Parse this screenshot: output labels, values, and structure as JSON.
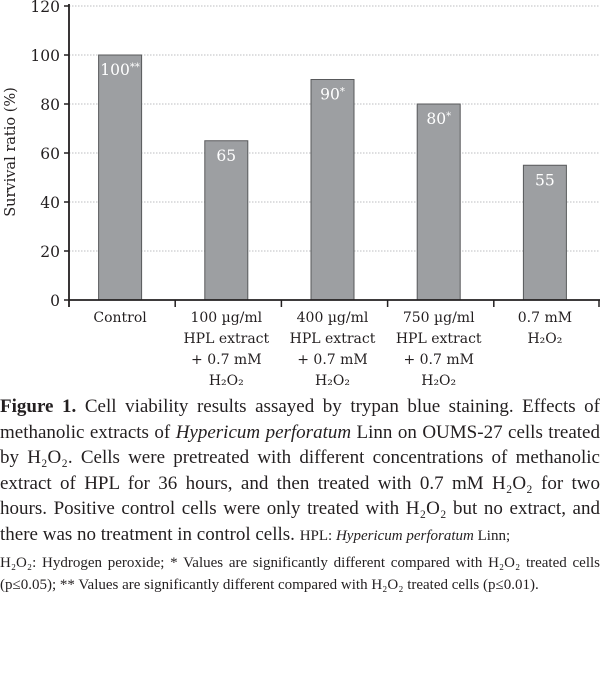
{
  "chart_data": {
    "type": "bar",
    "title": "",
    "xlabel": "",
    "ylabel": "Survival ratio (%)",
    "ylim": [
      0,
      120
    ],
    "yticks": [
      0,
      20,
      40,
      60,
      80,
      100,
      120
    ],
    "grid": true,
    "categories": [
      [
        "Control"
      ],
      [
        "100 µg/ml",
        "HPL extract",
        "+ 0.7 mM",
        "H₂O₂"
      ],
      [
        "400 µg/ml",
        "HPL extract",
        "+ 0.7 mM",
        "H₂O₂"
      ],
      [
        "750 µg/ml",
        "HPL extract",
        "+ 0.7 mM",
        "H₂O₂"
      ],
      [
        "0.7 mM",
        "H₂O₂"
      ]
    ],
    "values": [
      100,
      65,
      90,
      80,
      55
    ],
    "data_labels": [
      "100",
      "65",
      "90",
      "80",
      "55"
    ],
    "significance": [
      "**",
      "",
      "*",
      "*",
      ""
    ],
    "bar_color": "#9d9fa2",
    "bar_edge_color": "#58595b"
  },
  "caption": [
    {
      "t": "Figure 1.",
      "s": "b"
    },
    {
      "t": " Cell viability results assayed by trypan blue staining. Effects of methanolic extracts of ",
      "s": ""
    },
    {
      "t": "Hypericum perforatum",
      "s": "i"
    },
    {
      "t": " Linn on OUMS-27 cells treated by H₂O₂. Cells were pretreated with different concentrations of methanolic extract of HPL for 36 hours, and then treated with 0.7 mM H₂O₂ for two hours. Positive control cells were only treated with H₂O₂ but no extract, and there was no treatment in control cells. ",
      "s": ""
    },
    {
      "t": "HPL: ",
      "s": "small"
    },
    {
      "t": "Hypericum perforatum",
      "s": "small-i"
    },
    {
      "t": " Linn;",
      "s": "small"
    }
  ],
  "notes": [
    {
      "t": "H₂O₂: Hydrogen peroxide; * Values are significantly different compared with H₂O₂ treated cells (p≤0.05); ** Values are significantly different compared with H₂O₂ treated cells (p≤0.01).",
      "s": ""
    }
  ]
}
